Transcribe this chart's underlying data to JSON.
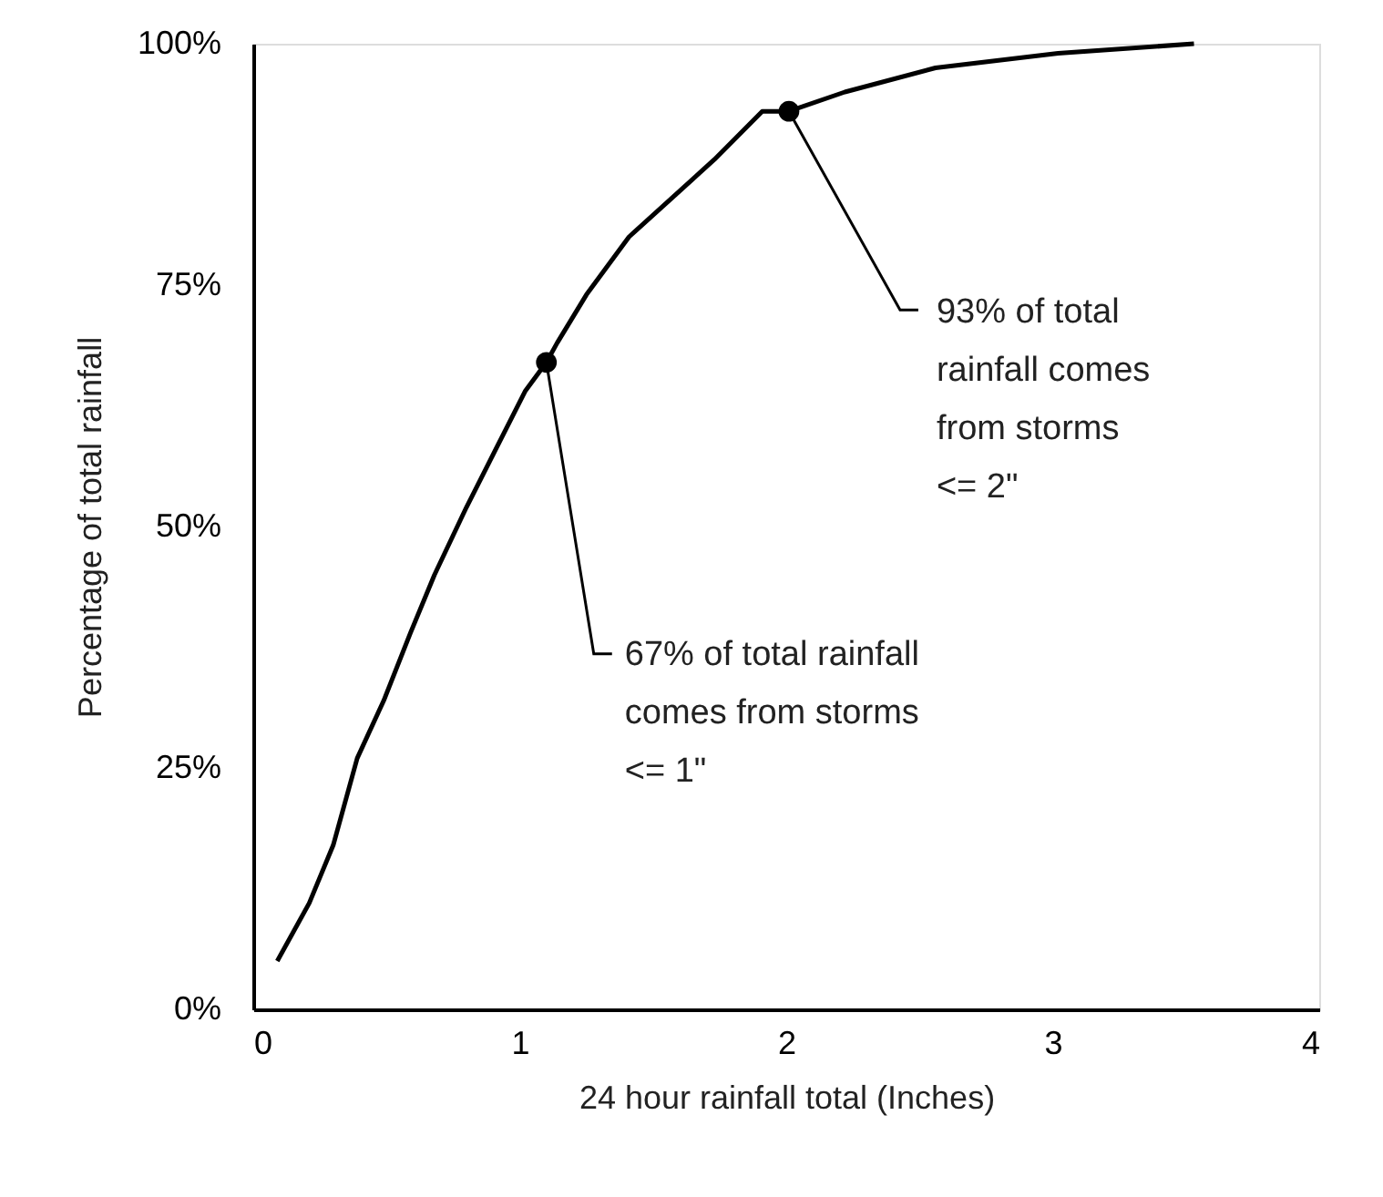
{
  "chart_data": {
    "type": "line",
    "xlabel": "24 hour rainfall total (Inches)",
    "ylabel": "Percentage of total rainfall",
    "series": [
      {
        "color": "#000000",
        "x": [
          0.09,
          0.21,
          0.3,
          0.39,
          0.49,
          0.59,
          0.68,
          0.8,
          0.91,
          1.02,
          1.1,
          1.14,
          1.25,
          1.41,
          1.57,
          1.73,
          1.91,
          2.01,
          2.22,
          2.56,
          3.02,
          3.53
        ],
        "values": [
          5,
          11,
          17,
          26,
          32,
          39,
          45,
          52,
          58,
          64,
          67,
          69,
          74,
          80,
          84,
          88,
          93,
          93,
          95,
          97.5,
          99,
          100
        ]
      }
    ],
    "xlim": [
      0,
      4
    ],
    "xticks": [
      0,
      1,
      2,
      3,
      4
    ],
    "ylim": [
      0,
      100
    ],
    "yticks": [
      {
        "value": 0,
        "label": "0%"
      },
      {
        "value": 25,
        "label": "25%"
      },
      {
        "value": 50,
        "label": "50%"
      },
      {
        "value": 75,
        "label": "75%"
      },
      {
        "value": 100,
        "label": "100%"
      }
    ],
    "annotations": [
      {
        "text": "67% of total rainfall\ncomes from storms\n<= 1\"",
        "x": 1.1,
        "y": 67
      },
      {
        "text": "93% of total\nrainfall comes\nfrom storms\n<= 2\"",
        "x": 2.01,
        "y": 93
      }
    ],
    "grid": false,
    "marker": "none",
    "line_style": "solid"
  }
}
